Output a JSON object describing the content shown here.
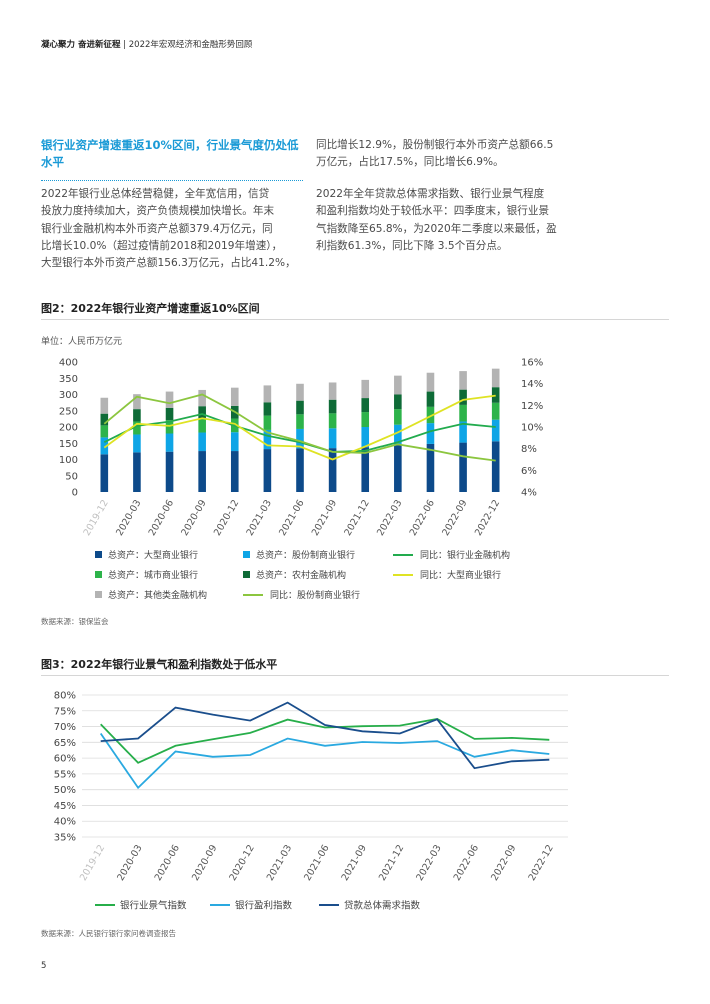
{
  "header": {
    "bold": "凝心聚力 奋进新征程",
    "sep": "|",
    "text": "2022年宏观经济和金融形势回顾"
  },
  "section": {
    "title": "银行业资产增速重返10%区间，行业景气度仍处低水平",
    "left_lines": [
      "2022年银行业总体经营稳健，全年宽信用，信贷",
      "投放力度持续加大，资产负债规模加快增长。年末",
      "银行业金融机构本外币资产总额379.4万亿元，同",
      "比增长10.0%（超过疫情前2018和2019年增速），",
      "大型银行本外币资产总额156.3万亿元，占比41.2%，"
    ],
    "right_lines_1": [
      "同比增长12.9%，股份制银行本外币资产总额66.5",
      "万亿元，占比17.5%，同比增长6.9%。"
    ],
    "right_lines_2": [
      "2022年全年贷款总体需求指数、银行业景气程度",
      "和盈利指数均处于较低水平：四季度末，银行业景",
      "气指数降至65.8%，为2020年二季度以来最低，盈",
      "利指数61.3%，同比下降 3.5个百分点。"
    ]
  },
  "figure2": {
    "title": "图2：2022年银行业资产增速重返10%区间",
    "unit": "单位：人民币万亿元",
    "source": "数据来源：银保监会",
    "legend": [
      {
        "label": "总资产：大型商业银行",
        "color": "#0d4a8a",
        "kind": "square"
      },
      {
        "label": "总资产：股份制商业银行",
        "color": "#0ea5e6",
        "kind": "square"
      },
      {
        "label": "同比：银行业金融机构",
        "color": "#22ab4e",
        "kind": "line"
      },
      {
        "label": "总资产：城市商业银行",
        "color": "#2db34a",
        "kind": "square"
      },
      {
        "label": "总资产：农村金融机构",
        "color": "#0e6b37",
        "kind": "square"
      },
      {
        "label": "同比：大型商业银行",
        "color": "#dfe324",
        "kind": "line"
      },
      {
        "label": "总资产：其他类金融机构",
        "color": "#b3b3b3",
        "kind": "square"
      },
      {
        "label": "同比：股份制商业银行",
        "color": "#8cc63f",
        "kind": "line"
      }
    ]
  },
  "figure3": {
    "title": "图3：2022年银行业景气和盈利指数处于低水平",
    "source": "数据来源：人民银行银行家问卷调查报告",
    "legend": [
      {
        "label": "银行业景气指数",
        "color": "#27ae4a"
      },
      {
        "label": "银行盈利指数",
        "color": "#2aa9e0"
      },
      {
        "label": "贷款总体需求指数",
        "color": "#1a4e8c"
      }
    ]
  },
  "page_number": "5",
  "chart_data": [
    {
      "type": "bar",
      "title": "图2：2022年银行业资产增速重返10%区间",
      "ylabel": "单位：人民币万亿元",
      "ylim": [
        0,
        400
      ],
      "y_ticks": [
        "0",
        "50",
        "100",
        "150",
        "200",
        "250",
        "300",
        "350",
        "400"
      ],
      "y2lim": [
        4,
        16
      ],
      "y2_ticks": [
        "4%",
        "6%",
        "8%",
        "10%",
        "12%",
        "14%",
        "16%"
      ],
      "stacked": true,
      "categories": [
        "2019-12",
        "2020-03",
        "2020-06",
        "2020-09",
        "2020-12",
        "2021-03",
        "2021-06",
        "2021-09",
        "2021-12",
        "2022-03",
        "2022-06",
        "2022-09",
        "2022-12"
      ],
      "series": [
        {
          "name": "总资产：大型商业银行",
          "color": "#0d4a8a",
          "values": [
            116,
            122,
            124,
            126,
            126,
            132,
            134,
            135,
            138,
            144,
            148,
            152,
            156
          ]
        },
        {
          "name": "总资产：股份制商业银行",
          "color": "#0ea5e6",
          "values": [
            52,
            55,
            56,
            57,
            58,
            59,
            60,
            61,
            62,
            63,
            64,
            65,
            66.5
          ]
        },
        {
          "name": "总资产：城市商业银行",
          "color": "#2db34a",
          "values": [
            37,
            40,
            41,
            42,
            42,
            44,
            45,
            46,
            46,
            48,
            50,
            51,
            52
          ]
        },
        {
          "name": "总资产：农村金融机构",
          "color": "#0e6b37",
          "values": [
            36,
            38,
            38,
            39,
            39,
            41,
            42,
            42,
            43,
            45,
            47,
            47,
            48
          ]
        },
        {
          "name": "总资产：其他类金融机构",
          "color": "#b3b3b3",
          "values": [
            49,
            46,
            50,
            50,
            56,
            52,
            52,
            53,
            56,
            58,
            58,
            57,
            57
          ]
        }
      ],
      "lines": [
        {
          "name": "同比：银行业金融机构",
          "color": "#22ab4e",
          "axis": "right",
          "values": [
            8.6,
            10.1,
            10.5,
            11.2,
            10.1,
            9.2,
            8.6,
            7.7,
            7.8,
            8.6,
            9.6,
            10.3,
            10.0
          ]
        },
        {
          "name": "同比：大型商业银行",
          "color": "#dfe324",
          "axis": "right",
          "values": [
            8.1,
            10.3,
            10.1,
            10.8,
            10.3,
            8.3,
            8.2,
            7.0,
            8.2,
            9.5,
            11.0,
            12.5,
            12.9
          ]
        },
        {
          "name": "同比：股份制商业银行",
          "color": "#8cc63f",
          "axis": "right",
          "values": [
            10.3,
            12.8,
            12.2,
            13.0,
            11.4,
            9.5,
            8.7,
            7.7,
            7.6,
            8.4,
            7.9,
            7.3,
            6.9
          ]
        }
      ],
      "grid": false,
      "legend_position": "bottom"
    },
    {
      "type": "line",
      "title": "图3：2022年银行业景气和盈利指数处于低水平",
      "ylim": [
        35,
        80
      ],
      "y_ticks": [
        "35%",
        "40%",
        "45%",
        "50%",
        "55%",
        "60%",
        "65%",
        "70%",
        "75%",
        "80%"
      ],
      "categories": [
        "2019-12",
        "2020-03",
        "2020-06",
        "2020-09",
        "2020-12",
        "2021-03",
        "2021-06",
        "2021-09",
        "2021-12",
        "2022-03",
        "2022-06",
        "2022-09",
        "2022-12"
      ],
      "series": [
        {
          "name": "银行业景气指数",
          "color": "#27ae4a",
          "values": [
            70.7,
            58.5,
            63.9,
            66.0,
            68.0,
            72.2,
            69.7,
            70.1,
            70.3,
            72.4,
            66.1,
            66.4,
            65.8
          ]
        },
        {
          "name": "银行盈利指数",
          "color": "#2aa9e0",
          "values": [
            67.8,
            50.6,
            62.1,
            60.4,
            61.0,
            66.2,
            63.9,
            65.1,
            64.8,
            65.4,
            60.4,
            62.5,
            61.3
          ]
        },
        {
          "name": "贷款总体需求指数",
          "color": "#1a4e8c",
          "values": [
            65.4,
            66.2,
            76.0,
            73.8,
            71.9,
            77.6,
            70.5,
            68.5,
            67.8,
            72.3,
            56.8,
            59.0,
            59.5
          ]
        }
      ],
      "grid": true,
      "legend_position": "bottom"
    }
  ]
}
